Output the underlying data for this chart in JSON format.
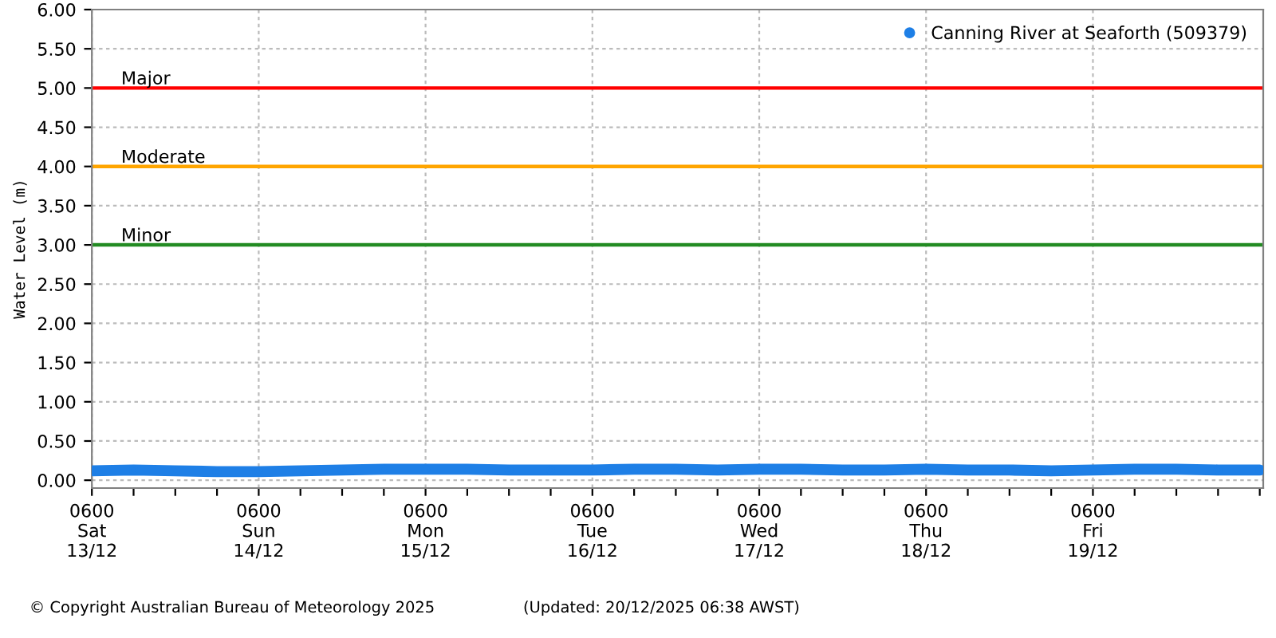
{
  "chart_data": {
    "type": "line",
    "ylabel": "Water Level (m)",
    "annotations": [
      "© Copyright Australian Bureau of Meteorology 2025",
      "(Updated: 20/12/2025 06:38 AWST)"
    ],
    "legend": "top right",
    "grid": true,
    "marker": "circle",
    "line_style": "solid",
    "xlim": [
      "2025-12-13T06:00",
      "2025-12-20T06:30"
    ],
    "xticks": [
      {
        "value": "2025-12-13T06:00",
        "label": "0600\nSat\n13/12"
      },
      {
        "value": "2025-12-13T12:00",
        "label": null
      },
      {
        "value": "2025-12-13T18:00",
        "label": null
      },
      {
        "value": "2025-12-14T00:00",
        "label": null
      },
      {
        "value": "2025-12-14T06:00",
        "label": "0600\nSun\n14/12"
      },
      {
        "value": "2025-12-14T12:00",
        "label": null
      },
      {
        "value": "2025-12-14T18:00",
        "label": null
      },
      {
        "value": "2025-12-15T00:00",
        "label": null
      },
      {
        "value": "2025-12-15T06:00",
        "label": "0600\nMon\n15/12"
      },
      {
        "value": "2025-12-15T12:00",
        "label": null
      },
      {
        "value": "2025-12-15T18:00",
        "label": null
      },
      {
        "value": "2025-12-16T00:00",
        "label": null
      },
      {
        "value": "2025-12-16T06:00",
        "label": "0600\nTue\n16/12"
      },
      {
        "value": "2025-12-16T12:00",
        "label": null
      },
      {
        "value": "2025-12-16T18:00",
        "label": null
      },
      {
        "value": "2025-12-17T00:00",
        "label": null
      },
      {
        "value": "2025-12-17T06:00",
        "label": "0600\nWed\n17/12"
      },
      {
        "value": "2025-12-17T12:00",
        "label": null
      },
      {
        "value": "2025-12-17T18:00",
        "label": null
      },
      {
        "value": "2025-12-18T00:00",
        "label": null
      },
      {
        "value": "2025-12-18T06:00",
        "label": "0600\nThu\n18/12"
      },
      {
        "value": "2025-12-18T12:00",
        "label": null
      },
      {
        "value": "2025-12-18T18:00",
        "label": null
      },
      {
        "value": "2025-12-19T00:00",
        "label": null
      },
      {
        "value": "2025-12-19T06:00",
        "label": "0600\nFri\n19/12"
      },
      {
        "value": "2025-12-19T12:00",
        "label": null
      },
      {
        "value": "2025-12-19T18:00",
        "label": null
      },
      {
        "value": "2025-12-20T00:00",
        "label": null
      },
      {
        "value": "2025-12-20T06:00",
        "label": null
      }
    ],
    "ylim": [
      -0.1,
      6.0
    ],
    "yticks": [
      {
        "value": 0,
        "label": "0.00"
      },
      {
        "value": 0.5,
        "label": "0.50"
      },
      {
        "value": 1,
        "label": "1.00"
      },
      {
        "value": 1.5,
        "label": "1.50"
      },
      {
        "value": 2,
        "label": "2.00"
      },
      {
        "value": 2.5,
        "label": "2.50"
      },
      {
        "value": 3,
        "label": "3.00"
      },
      {
        "value": 3.5,
        "label": "3.50"
      },
      {
        "value": 4,
        "label": "4.00"
      },
      {
        "value": 4.5,
        "label": "4.50"
      },
      {
        "value": 5,
        "label": "5.00"
      },
      {
        "value": 5.5,
        "label": "5.50"
      },
      {
        "value": 6,
        "label": "6.00"
      }
    ],
    "ref_lines": [
      {
        "axis": "y",
        "value": 5,
        "label": "Major",
        "color": "#ff0000"
      },
      {
        "axis": "y",
        "value": 4,
        "label": "Moderate",
        "color": "#ffa500"
      },
      {
        "axis": "y",
        "value": 3,
        "label": "Minor",
        "color": "#228b22"
      }
    ],
    "series": [
      {
        "name": "Canning River at Seaforth (509379)",
        "color": "#1e7fe6",
        "x": [
          "2025-12-13T06:00",
          "2025-12-13T12:00",
          "2025-12-13T18:00",
          "2025-12-14T00:00",
          "2025-12-14T06:00",
          "2025-12-14T12:00",
          "2025-12-14T18:00",
          "2025-12-15T00:00",
          "2025-12-15T06:00",
          "2025-12-15T12:00",
          "2025-12-15T18:00",
          "2025-12-16T00:00",
          "2025-12-16T06:00",
          "2025-12-16T12:00",
          "2025-12-16T18:00",
          "2025-12-17T00:00",
          "2025-12-17T06:00",
          "2025-12-17T12:00",
          "2025-12-17T18:00",
          "2025-12-18T00:00",
          "2025-12-18T06:00",
          "2025-12-18T12:00",
          "2025-12-18T18:00",
          "2025-12-19T00:00",
          "2025-12-19T06:00",
          "2025-12-19T12:00",
          "2025-12-19T18:00",
          "2025-12-20T00:00",
          "2025-12-20T06:00"
        ],
        "values": [
          0.12,
          0.13,
          0.12,
          0.11,
          0.11,
          0.12,
          0.13,
          0.14,
          0.14,
          0.14,
          0.13,
          0.13,
          0.13,
          0.14,
          0.14,
          0.13,
          0.14,
          0.14,
          0.13,
          0.13,
          0.14,
          0.13,
          0.13,
          0.12,
          0.13,
          0.14,
          0.14,
          0.13,
          0.13
        ]
      }
    ]
  }
}
